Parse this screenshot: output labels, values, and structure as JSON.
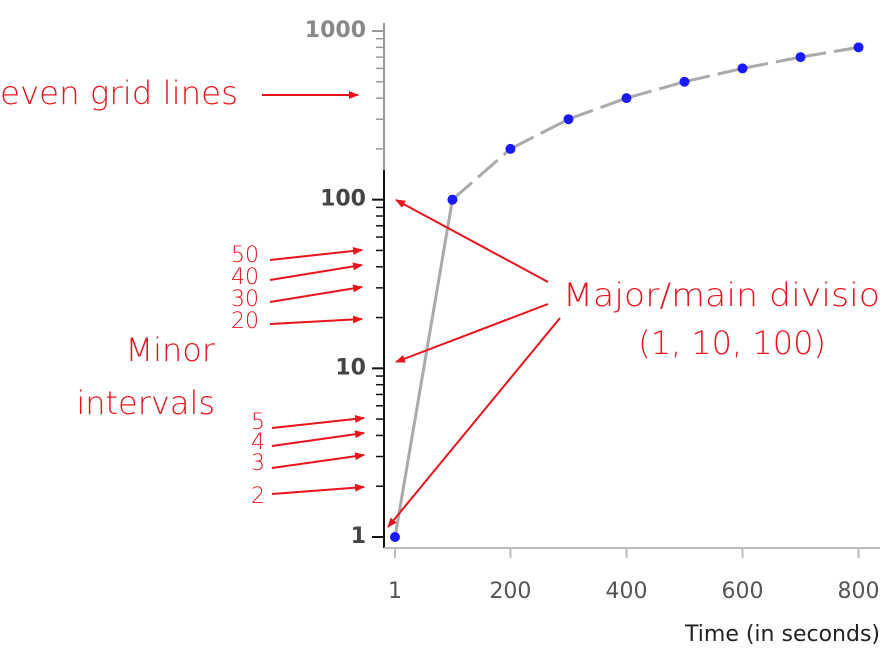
{
  "chart_data": {
    "type": "line",
    "x_label": "Time (in seconds)",
    "x": [
      1,
      100,
      200,
      300,
      400,
      500,
      600,
      700,
      800
    ],
    "series": [
      {
        "color": "#aaaaaa",
        "marker_color": "#1a1aff",
        "values": [
          1,
          100,
          200,
          300,
          400,
          500,
          600,
          700,
          800
        ]
      }
    ],
    "xlim": [
      1,
      837
    ],
    "xticks": [
      1,
      200,
      400,
      600,
      800
    ],
    "ylim": [
      1,
      1000
    ],
    "yticks": [
      1,
      10,
      100,
      1000
    ],
    "log_y": true,
    "annotations": [
      "even grid lines",
      "Major/main divisio",
      "(1, 10, 100)",
      "Minor",
      "intervals",
      "50",
      "40",
      "30",
      "20",
      "5",
      "4",
      "3",
      "2"
    ]
  }
}
